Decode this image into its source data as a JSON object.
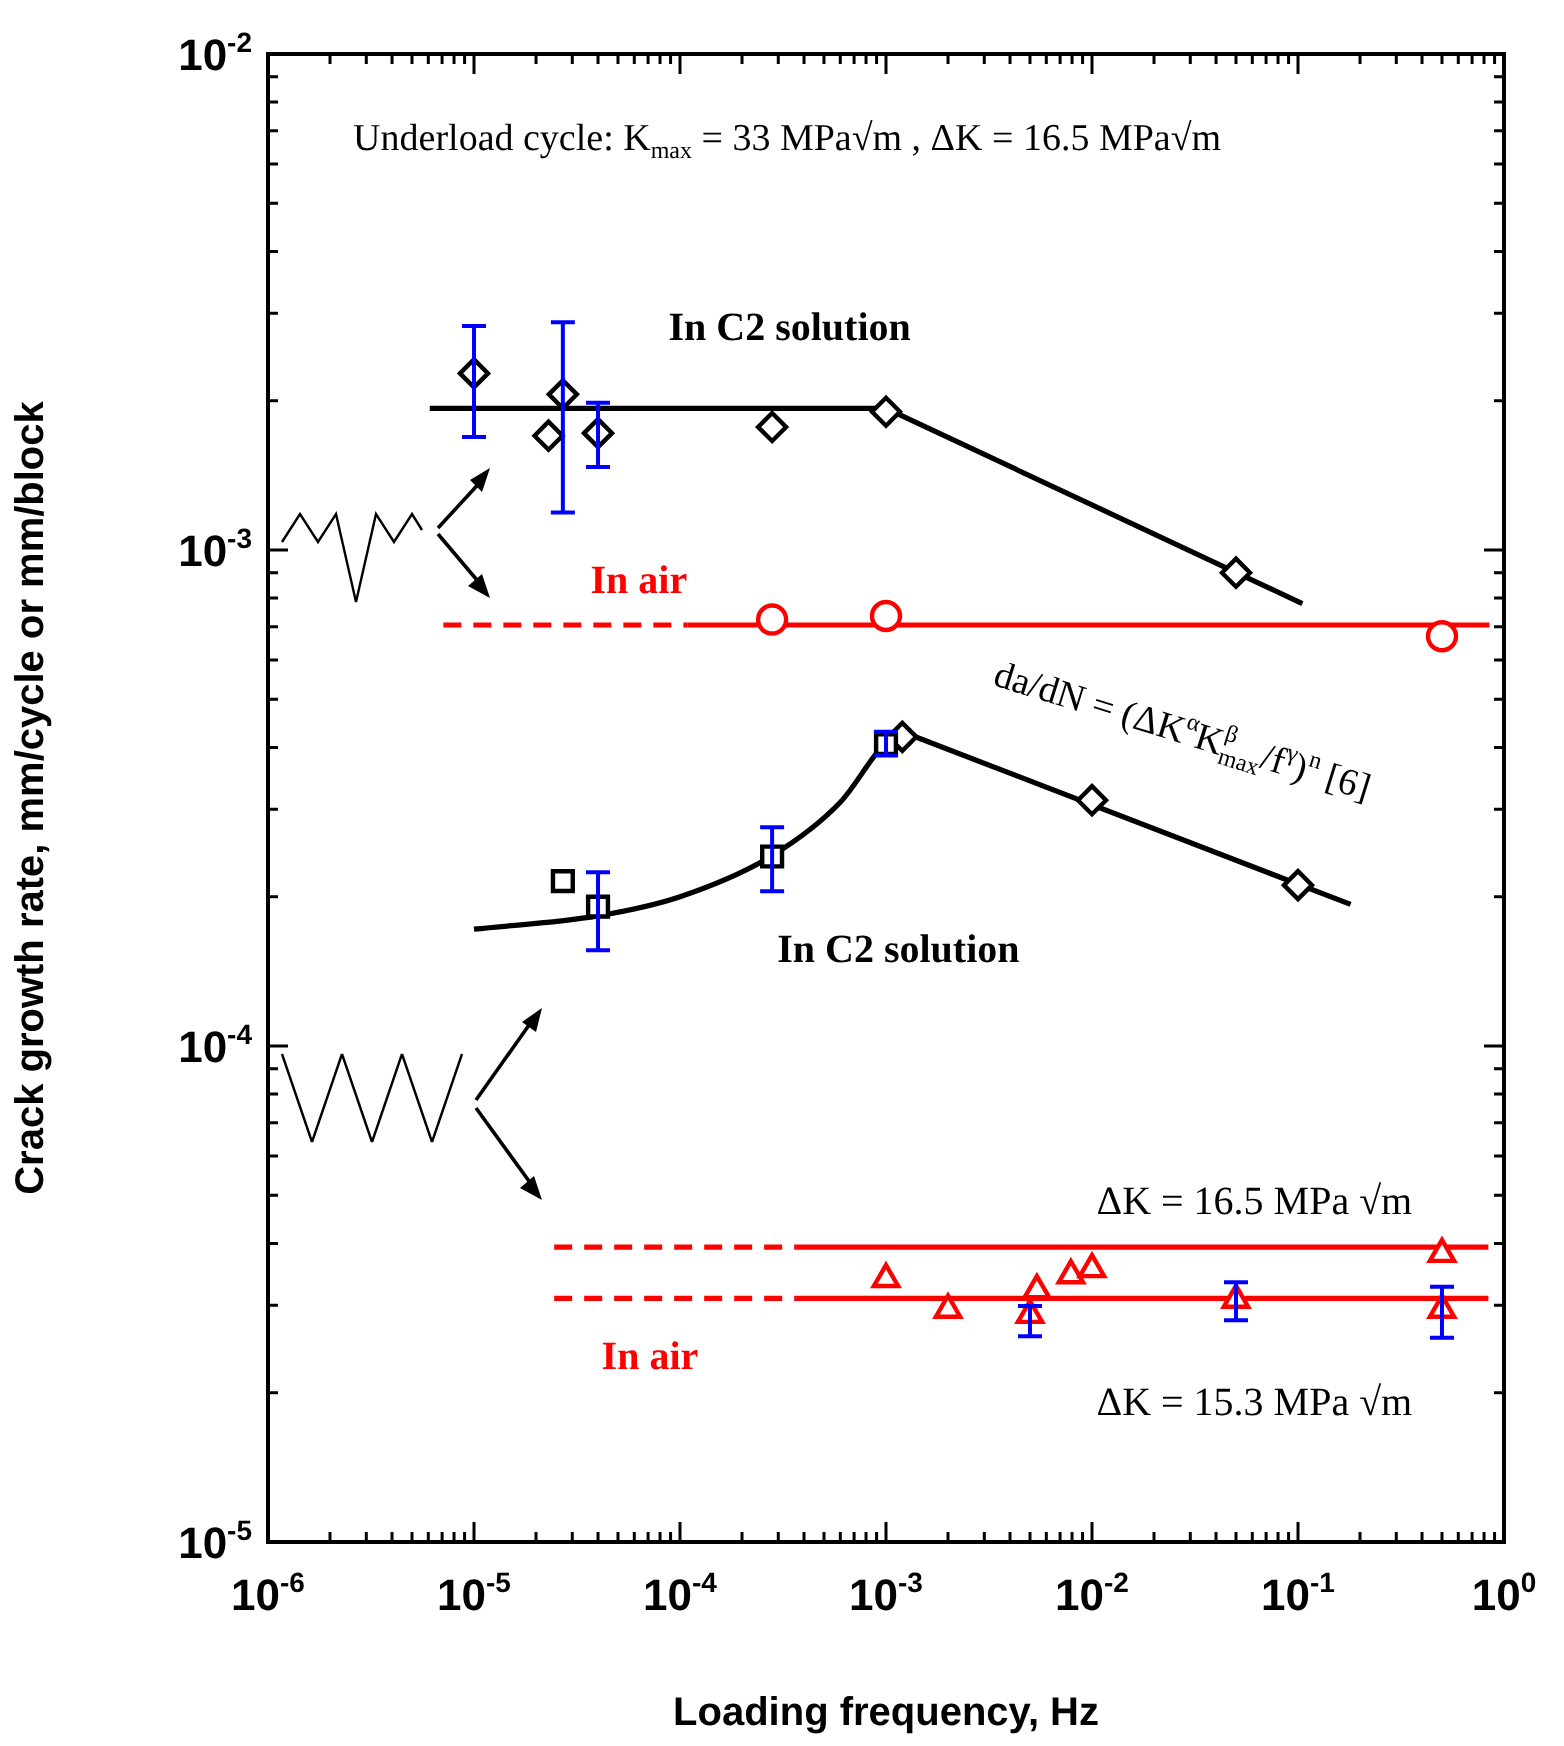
{
  "chart_data": {
    "type": "scatter",
    "xlabel": "Loading frequency, Hz",
    "ylabel": "Crack growth rate, mm/cycle or mm/block",
    "log": "xy",
    "grid": false,
    "legend": false,
    "xlim": [
      1e-06,
      1
    ],
    "ylim": [
      1e-05,
      0.01
    ],
    "xticks": [
      {
        "value": 1e-06,
        "label": "10$^{-6}$"
      },
      {
        "value": 2e-06,
        "label": null
      },
      {
        "value": 3e-06,
        "label": null
      },
      {
        "value": 4e-06,
        "label": null
      },
      {
        "value": 5e-06,
        "label": null
      },
      {
        "value": 6e-06,
        "label": null
      },
      {
        "value": 7e-06,
        "label": null
      },
      {
        "value": 8e-06,
        "label": null
      },
      {
        "value": 9e-06,
        "label": null
      },
      {
        "value": 1e-05,
        "label": "10$^{-5}$"
      },
      {
        "value": 2e-05,
        "label": null
      },
      {
        "value": 3e-05,
        "label": null
      },
      {
        "value": 4e-05,
        "label": null
      },
      {
        "value": 5e-05,
        "label": null
      },
      {
        "value": 6e-05,
        "label": null
      },
      {
        "value": 7e-05,
        "label": null
      },
      {
        "value": 8e-05,
        "label": null
      },
      {
        "value": 9e-05,
        "label": null
      },
      {
        "value": 0.0001,
        "label": "10$^{-4}$"
      },
      {
        "value": 0.0002,
        "label": null
      },
      {
        "value": 0.0003,
        "label": null
      },
      {
        "value": 0.0004,
        "label": null
      },
      {
        "value": 0.0005,
        "label": null
      },
      {
        "value": 0.0006,
        "label": null
      },
      {
        "value": 0.0007,
        "label": null
      },
      {
        "value": 0.0008,
        "label": null
      },
      {
        "value": 0.0009,
        "label": null
      },
      {
        "value": 0.001,
        "label": "10$^{-3}$"
      },
      {
        "value": 0.002,
        "label": null
      },
      {
        "value": 0.003,
        "label": null
      },
      {
        "value": 0.004,
        "label": null
      },
      {
        "value": 0.005,
        "label": null
      },
      {
        "value": 0.006,
        "label": null
      },
      {
        "value": 0.007,
        "label": null
      },
      {
        "value": 0.008,
        "label": null
      },
      {
        "value": 0.009,
        "label": null
      },
      {
        "value": 0.01,
        "label": "10$^{-2}$"
      },
      {
        "value": 0.02,
        "label": null
      },
      {
        "value": 0.03,
        "label": null
      },
      {
        "value": 0.04,
        "label": null
      },
      {
        "value": 0.05,
        "label": null
      },
      {
        "value": 0.06,
        "label": null
      },
      {
        "value": 0.07,
        "label": null
      },
      {
        "value": 0.08,
        "label": null
      },
      {
        "value": 0.09,
        "label": null
      },
      {
        "value": 0.1,
        "label": "10$^{-1}$"
      },
      {
        "value": 0.2,
        "label": null
      },
      {
        "value": 0.3,
        "label": null
      },
      {
        "value": 0.4,
        "label": null
      },
      {
        "value": 0.5,
        "label": null
      },
      {
        "value": 0.6,
        "label": null
      },
      {
        "value": 0.7,
        "label": null
      },
      {
        "value": 0.8,
        "label": null
      },
      {
        "value": 0.9,
        "label": null
      },
      {
        "value": 1,
        "label": "10$^{0}$"
      }
    ],
    "yticks": [
      {
        "value": 1e-05,
        "label": "10$^{-5}$"
      },
      {
        "value": 2e-05,
        "label": null
      },
      {
        "value": 3e-05,
        "label": null
      },
      {
        "value": 4e-05,
        "label": null
      },
      {
        "value": 5e-05,
        "label": null
      },
      {
        "value": 6e-05,
        "label": null
      },
      {
        "value": 7e-05,
        "label": null
      },
      {
        "value": 8e-05,
        "label": null
      },
      {
        "value": 9e-05,
        "label": null
      },
      {
        "value": 0.0001,
        "label": "10$^{-4}$"
      },
      {
        "value": 0.0002,
        "label": null
      },
      {
        "value": 0.0003,
        "label": null
      },
      {
        "value": 0.0004,
        "label": null
      },
      {
        "value": 0.0005,
        "label": null
      },
      {
        "value": 0.0006,
        "label": null
      },
      {
        "value": 0.0007,
        "label": null
      },
      {
        "value": 0.0008,
        "label": null
      },
      {
        "value": 0.0009,
        "label": null
      },
      {
        "value": 0.001,
        "label": "10$^{-3}$"
      },
      {
        "value": 0.002,
        "label": null
      },
      {
        "value": 0.003,
        "label": null
      },
      {
        "value": 0.004,
        "label": null
      },
      {
        "value": 0.005,
        "label": null
      },
      {
        "value": 0.006,
        "label": null
      },
      {
        "value": 0.007,
        "label": null
      },
      {
        "value": 0.008,
        "label": null
      },
      {
        "value": 0.009,
        "label": null
      },
      {
        "value": 0.01,
        "label": "10$^{-2}$"
      }
    ],
    "series": [
      {
        "type": "scatter",
        "color": "#000000",
        "marker": "diamond",
        "x": [
          1e-05,
          2.7e-05,
          2.3e-05,
          4e-05,
          0.00028,
          0.001,
          0.05
        ],
        "values": [
          0.00227,
          0.00206,
          0.0017,
          0.00172,
          0.00177,
          0.0019,
          0.0009
        ],
        "errors": [
          [
            0.00169,
            0.00283
          ],
          [
            0.00119,
            0.00288
          ],
          null,
          [
            0.00147,
            0.00198
          ],
          null,
          null,
          null
        ]
      },
      {
        "type": "line",
        "color": "#000000",
        "marker": "none",
        "line_style": "solid",
        "x": [
          6.1e-06,
          0.001,
          0.105
        ],
        "values": [
          0.00193,
          0.00193,
          0.00078
        ]
      },
      {
        "type": "scatter",
        "color": "#ff0000",
        "marker": "circle",
        "x": [
          0.00028,
          0.001,
          0.5
        ],
        "values": [
          0.000724,
          0.000736,
          0.00067
        ]
      },
      {
        "type": "line",
        "color": "#ff0000",
        "marker": "none",
        "line_style": "dashed",
        "x": [
          7.1e-06,
          0.000109
        ],
        "values": [
          0.000706,
          0.000706
        ]
      },
      {
        "type": "line",
        "color": "#ff0000",
        "marker": "none",
        "line_style": "solid",
        "x": [
          0.000109,
          0.85
        ],
        "values": [
          0.000706,
          0.000706
        ]
      },
      {
        "type": "scatter",
        "color": "#000000",
        "marker": "square",
        "x": [
          2.7e-05,
          4e-05,
          0.00028,
          0.001
        ],
        "values": [
          0.000215,
          0.000191,
          0.000241,
          0.000406
        ],
        "errors": [
          null,
          [
            0.000156,
            0.000224
          ],
          [
            0.000205,
            0.000276
          ],
          [
            0.000385,
            0.00043
          ]
        ]
      },
      {
        "type": "scatter",
        "color": "#000000",
        "marker": "diamond",
        "x": [
          0.0012,
          0.01,
          0.1
        ],
        "values": [
          0.00042,
          0.000313,
          0.000211
        ]
      },
      {
        "type": "line",
        "color": "#000000",
        "marker": "none",
        "line_style": "solid",
        "x": [
          1e-05,
          4e-05,
          0.0001,
          0.00028,
          0.0006,
          0.001,
          0.0012
        ],
        "values": [
          0.000172,
          0.000183,
          0.0002,
          0.000242,
          0.00031,
          0.00041,
          0.00043
        ]
      },
      {
        "type": "line",
        "color": "#000000",
        "marker": "none",
        "line_style": "solid",
        "x": [
          0.0012,
          0.18
        ],
        "values": [
          0.00043,
          0.000193
        ]
      },
      {
        "type": "line",
        "color": "#ff0000",
        "marker": "none",
        "line_style": "dashed",
        "x": [
          2.45e-05,
          0.000366
        ],
        "values": [
          3.93e-05,
          3.93e-05
        ]
      },
      {
        "type": "line",
        "color": "#ff0000",
        "marker": "none",
        "line_style": "solid",
        "x": [
          0.000366,
          0.84
        ],
        "values": [
          3.93e-05,
          3.93e-05
        ]
      },
      {
        "type": "line",
        "color": "#ff0000",
        "marker": "none",
        "line_style": "dashed",
        "x": [
          2.45e-05,
          0.000366
        ],
        "values": [
          3.1e-05,
          3.1e-05
        ]
      },
      {
        "type": "line",
        "color": "#ff0000",
        "marker": "none",
        "line_style": "solid",
        "x": [
          0.000366,
          0.84
        ],
        "values": [
          3.1e-05,
          3.1e-05
        ]
      },
      {
        "type": "scatter",
        "color": "#ff0000",
        "marker": "triangle",
        "x": [
          0.001,
          0.002,
          0.005,
          0.0054,
          0.0079,
          0.01,
          0.05,
          0.5
        ],
        "values": [
          3.39e-05,
          2.94e-05,
          2.87e-05,
          3.22e-05,
          3.45e-05,
          3.55e-05,
          3.08e-05,
          2.94e-05
        ],
        "errors": [
          null,
          null,
          [
            2.6e-05,
            2.99e-05
          ],
          null,
          null,
          null,
          [
            2.8e-05,
            3.34e-05
          ],
          [
            2.58e-05,
            3.27e-05
          ]
        ]
      },
      {
        "type": "scatter",
        "color": "#ff0000",
        "marker": "triangle",
        "x": [
          0.5
        ],
        "values": [
          3.81e-05
        ]
      }
    ],
    "annotations": [
      "Underload cycle: K$_{max}$ = 33 MPa√m , ΔK = 16.5 MPa√m",
      "da/dN = (ΔK$^{α}$K$_{max}$$^{β}$/f$^{γ}$)$^{n}$ [6]",
      "In C2 solution",
      "In air",
      "In C2 solution",
      "ΔK = 16.5 MPa √m",
      "In air",
      "ΔK = 15.3 MPa √m"
    ]
  }
}
